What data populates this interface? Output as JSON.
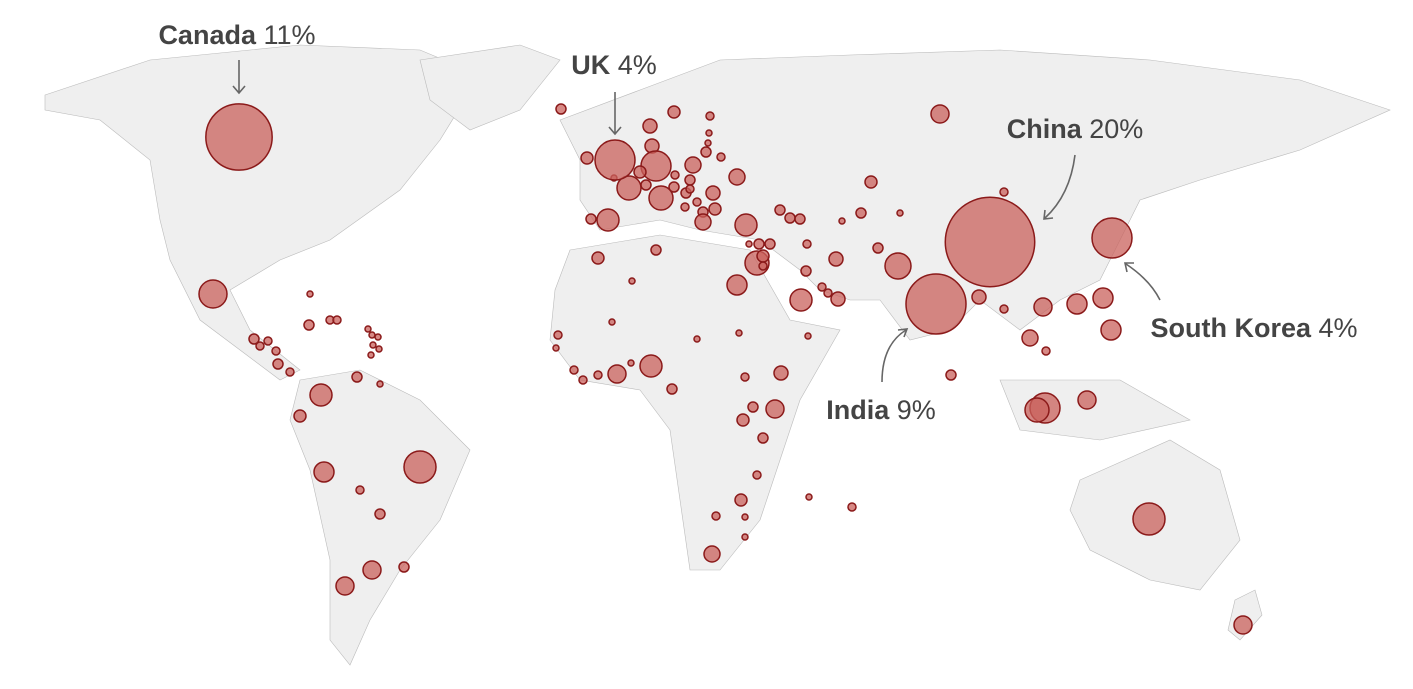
{
  "chart_data": {
    "type": "bubble-map",
    "color": "#c9625c",
    "stroke": "#8b1a1a",
    "annotations": [
      {
        "name": "Canada",
        "value": 11,
        "value_label": "11%"
      },
      {
        "name": "UK",
        "value": 4,
        "value_label": "4%"
      },
      {
        "name": "China",
        "value": 20,
        "value_label": "20%"
      },
      {
        "name": "India",
        "value": 9,
        "value_label": "9%"
      },
      {
        "name": "South Korea",
        "value": 4,
        "value_label": "4%"
      }
    ]
  }
}
